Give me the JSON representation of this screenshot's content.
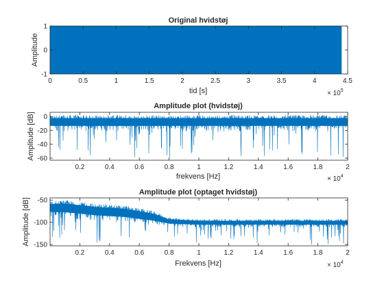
{
  "chart_data": [
    {
      "type": "line",
      "title": "Original hvidstøj",
      "xlabel": "tid [s]",
      "ylabel": "Amplitude",
      "x_exponent": {
        "base": "× 10",
        "exp": "5"
      },
      "xlim": [
        0,
        4.5
      ],
      "ylim": [
        -1,
        1
      ],
      "x_ticks": [
        "0",
        "0.5",
        "1",
        "1.5",
        "2",
        "2.5",
        "3",
        "3.5",
        "4",
        "4.5"
      ],
      "y_ticks": [
        "-1",
        "0",
        "1"
      ],
      "signal": {
        "kind": "uniform_noise",
        "x_end": 4.41,
        "min": -1,
        "max": 1
      },
      "color": "#0072BD"
    },
    {
      "type": "line",
      "title": "Amplitude plot (hvidstøj)",
      "xlabel": "frekvens [Hz]",
      "ylabel": "Amplitude [dB]",
      "x_exponent": {
        "base": "× 10",
        "exp": "4"
      },
      "xlim": [
        0.0,
        2.0
      ],
      "ylim": [
        -63,
        6
      ],
      "x_ticks": [
        "0.2",
        "0.4",
        "0.6",
        "0.8",
        "1",
        "1.2",
        "1.4",
        "1.6",
        "1.8",
        "2"
      ],
      "y_ticks": [
        "0",
        "-20",
        "-40",
        "-60"
      ],
      "envelope": {
        "x": [
          0.0,
          2.0
        ],
        "upper": [
          2,
          2
        ],
        "body_low": [
          -22,
          -22
        ],
        "spike_min": -62
      },
      "color": "#0072BD"
    },
    {
      "type": "line",
      "title": "Amplitude plot (optaget hvidstøj)",
      "xlabel": "Frekvens [Hz]",
      "ylabel": "Amplitude [dB]",
      "x_exponent": {
        "base": "× 10",
        "exp": "4"
      },
      "xlim": [
        0.0,
        2.0
      ],
      "ylim": [
        -153,
        -45
      ],
      "x_ticks": [
        "0.2",
        "0.4",
        "0.6",
        "0.8",
        "1",
        "1.2",
        "1.4",
        "1.6",
        "1.8",
        "2"
      ],
      "y_ticks": [
        "-50",
        "-100",
        "-150"
      ],
      "envelope": {
        "x": [
          0.0,
          0.1,
          0.3,
          0.5,
          0.7,
          0.8,
          1.0,
          1.5,
          2.0
        ],
        "upper": [
          -52,
          -50,
          -58,
          -62,
          -75,
          -90,
          -93,
          -93,
          -93
        ],
        "body_low": [
          -90,
          -92,
          -98,
          -102,
          -108,
          -110,
          -112,
          -112,
          -112
        ],
        "spike_min": -150
      },
      "color": "#0072BD"
    }
  ]
}
